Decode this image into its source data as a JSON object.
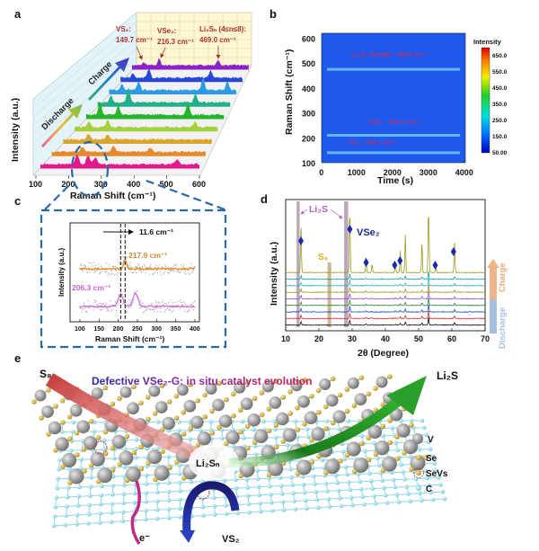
{
  "panels": {
    "a": {
      "label": "a"
    },
    "b": {
      "label": "b"
    },
    "c": {
      "label": "c"
    },
    "d": {
      "label": "d"
    },
    "e": {
      "label": "e"
    }
  },
  "chart_data": [
    {
      "id": "a",
      "type": "area",
      "xlabel": "Raman Shift (cm⁻¹)",
      "ylabel": "Intensity (a.u.)",
      "xlim": [
        100,
        600
      ],
      "xticks": [
        "100",
        "200",
        "300",
        "400",
        "500",
        "600"
      ],
      "arrows": {
        "discharge": "Discharge",
        "charge": "Charge"
      },
      "annotations": [
        {
          "name": "VS₂:",
          "value": "149.7 cm⁻¹",
          "x": 149.7
        },
        {
          "name": "VSe₂:",
          "value": "216.3 cm⁻¹",
          "x": 216.3
        },
        {
          "name": "Li₂Sₙ (4≤n≤8):",
          "value": "469.0 cm⁻¹",
          "x": 469.0
        }
      ],
      "colors": [
        "#e3178c",
        "#e58a2a",
        "#d9a52c",
        "#a3d13c",
        "#26b42a",
        "#1fb08a",
        "#2c9be4",
        "#2847d6",
        "#8a22c8"
      ],
      "spectra": [
        {
          "peaks": [
            [
              215,
              0.6
            ],
            [
              250,
              0.55
            ],
            [
              272,
              0.45
            ],
            [
              530,
              0.3
            ]
          ]
        },
        {
          "peaks": [
            [
              200,
              0.3
            ],
            [
              300,
              0.4
            ],
            [
              420,
              0.25
            ]
          ]
        },
        {
          "peaks": [
            [
              185,
              0.4
            ],
            [
              250,
              0.35
            ]
          ]
        },
        {
          "peaks": [
            [
              150,
              0.4
            ],
            [
              216,
              0.5
            ],
            [
              520,
              0.35
            ]
          ]
        },
        {
          "peaks": [
            [
              150,
              0.85
            ],
            [
              216,
              0.65
            ],
            [
              469,
              0.8
            ]
          ]
        },
        {
          "peaks": [
            [
              150,
              0.5
            ],
            [
              216,
              1.0
            ],
            [
              469,
              0.6
            ]
          ]
        },
        {
          "peaks": [
            [
              150,
              0.4
            ],
            [
              216,
              0.6
            ],
            [
              469,
              0.8
            ],
            [
              565,
              0.6
            ]
          ]
        },
        {
          "peaks": [
            [
              150,
              0.3
            ],
            [
              216,
              0.6
            ],
            [
              469,
              0.5
            ]
          ]
        },
        {
          "peaks": [
            [
              150,
              0.2
            ],
            [
              216,
              0.45
            ],
            [
              469,
              0.35
            ]
          ]
        }
      ]
    },
    {
      "id": "b",
      "type": "heatmap",
      "xlabel": "Time (s)",
      "ylabel": "Raman Shift (cm⁻¹)",
      "xlim": [
        0,
        4000
      ],
      "ylim": [
        100,
        620
      ],
      "xticks": [
        "0",
        "1000",
        "2000",
        "3000",
        "4000"
      ],
      "yticks": [
        "100",
        "200",
        "300",
        "400",
        "500",
        "600"
      ],
      "colorbar_title": "Intensity",
      "colorbar_ticks": [
        "650.0",
        "550.0",
        "450.0",
        "350.0",
        "250.0",
        "150.0",
        "50.00"
      ],
      "colorbar_range": [
        50,
        700
      ],
      "background_intensity": 120,
      "bands": [
        {
          "shift": 475,
          "intensity": 190,
          "label": "Li₂Sₙ (4≤n≤8) : 469.0 cm⁻¹"
        },
        {
          "shift": 210,
          "intensity": 190,
          "label": "VSe₂ : 216.3 cm⁻¹"
        },
        {
          "shift": 140,
          "intensity": 180,
          "label": "VS₂ : 149.7 cm⁻¹"
        }
      ]
    },
    {
      "id": "c",
      "type": "scatter",
      "xlabel": "Raman Shift (cm⁻¹)",
      "ylabel": "Intensity (a.u.)",
      "xlim": [
        75,
        410
      ],
      "xticks": [
        "100",
        "150",
        "200",
        "250",
        "300",
        "350",
        "400"
      ],
      "shift_label": "11.6 cm⁻¹",
      "reference_lines": [
        206.3,
        217.9
      ],
      "series": [
        {
          "label": "217.9 cm⁻¹",
          "color": "#e08a28",
          "peaks": [
            [
              217.9,
              1.0
            ]
          ]
        },
        {
          "label": "206.3 cm⁻¹",
          "color": "#d070d8",
          "peaks": [
            [
              206.3,
              1.3
            ],
            [
              245,
              1.5
            ]
          ]
        }
      ]
    },
    {
      "id": "d",
      "type": "line",
      "xlabel": "2θ (Degree)",
      "ylabel": "Intensity (a.u.)",
      "xlim": [
        10,
        70
      ],
      "xticks": [
        "10",
        "20",
        "30",
        "40",
        "50",
        "60",
        "70"
      ],
      "legend": {
        "charge": "Charge",
        "discharge": "Discharge"
      },
      "phase_labels": {
        "li2s": "Li₂S",
        "s8": "S₈",
        "vse2": "VSe₂"
      },
      "li2s_bands": [
        [
          13.3,
          14.2
        ],
        [
          27.6,
          28.8
        ]
      ],
      "s8_band": [
        22.6,
        23.7
      ],
      "vse2_markers": [
        14.6,
        29.3,
        34.2,
        42.8,
        44.4,
        55.0,
        60.5
      ],
      "trace_colors": [
        "#111111",
        "#d83030",
        "#2850c8",
        "#2a8a40",
        "#9a50c8",
        "#a09a20",
        "#30b0c0",
        "#20a0a0",
        "#9a9a20"
      ],
      "peaks": [
        [
          14.6,
          0.45
        ],
        [
          29.3,
          0.65
        ],
        [
          34.2,
          0.15
        ],
        [
          36.0,
          0.08
        ],
        [
          43.0,
          0.1
        ],
        [
          44.5,
          0.2
        ],
        [
          46.0,
          0.35
        ],
        [
          51.0,
          0.28
        ],
        [
          53.0,
          1.0
        ],
        [
          55.2,
          0.05
        ],
        [
          60.8,
          0.3
        ]
      ]
    }
  ],
  "diagram": {
    "title_part1": "Defective VSe₂-G:",
    "title_part2": "in situ catalyst evolution",
    "s8": "S₈",
    "li2s": "Li₂S",
    "li2sn": "Li₂Sₙ",
    "electron": "e⁻",
    "vs2": "VS₂",
    "legend": [
      {
        "label": "V",
        "color": "#8a8a8a"
      },
      {
        "label": "Se",
        "color": "#d4b040"
      },
      {
        "label": "SeVs",
        "color": "#d4b040"
      },
      {
        "label": "C",
        "color": "#8fd6e6"
      }
    ]
  }
}
